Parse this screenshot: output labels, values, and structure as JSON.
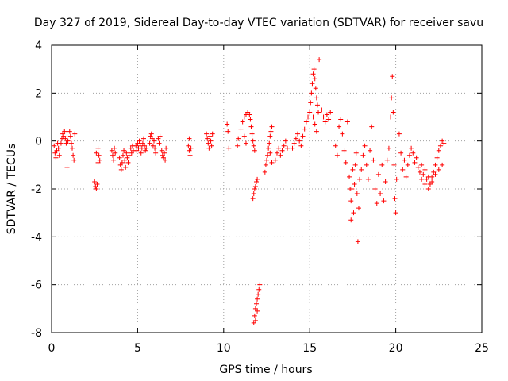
{
  "chart_data": {
    "type": "scatter",
    "title": "Day 327 of 2019, Sidereal Day-to-day VTEC variation (SDTVAR) for receiver savu",
    "xlabel": "GPS time / hours",
    "ylabel": "SDTVAR / TECUs",
    "xlim": [
      0,
      25
    ],
    "ylim": [
      -8,
      4
    ],
    "x_ticks": [
      0,
      5,
      10,
      15,
      20,
      25
    ],
    "y_ticks": [
      -8,
      -6,
      -4,
      -2,
      0,
      2,
      4
    ],
    "x_tick_labels": [
      "0",
      "5",
      "10",
      "15",
      "20",
      "25"
    ],
    "y_tick_labels": [
      "-8",
      "-6",
      "-4",
      "-2",
      "0",
      "2",
      "4"
    ],
    "grid": true,
    "marker": "+",
    "series": [
      {
        "name": "SDTVAR",
        "color": "#ff0000",
        "points": [
          [
            0.15,
            -0.2
          ],
          [
            0.2,
            -0.5
          ],
          [
            0.25,
            -0.7
          ],
          [
            0.3,
            -0.4
          ],
          [
            0.35,
            -0.1
          ],
          [
            0.4,
            -0.3
          ],
          [
            0.45,
            -0.6
          ],
          [
            0.55,
            -0.1
          ],
          [
            0.6,
            0.1
          ],
          [
            0.65,
            0.3
          ],
          [
            0.7,
            0.2
          ],
          [
            0.75,
            0.4
          ],
          [
            0.8,
            0.1
          ],
          [
            0.85,
            -0.1
          ],
          [
            0.9,
            -1.1
          ],
          [
            0.95,
            0.0
          ],
          [
            1.05,
            0.4
          ],
          [
            1.1,
            0.2
          ],
          [
            1.15,
            -0.1
          ],
          [
            1.2,
            -0.3
          ],
          [
            1.25,
            -0.6
          ],
          [
            1.3,
            -0.8
          ],
          [
            1.35,
            0.3
          ],
          [
            2.5,
            -1.7
          ],
          [
            2.55,
            -1.9
          ],
          [
            2.6,
            -2.0
          ],
          [
            2.65,
            -1.8
          ],
          [
            2.7,
            -0.3
          ],
          [
            2.75,
            -0.6
          ],
          [
            2.8,
            -0.8
          ],
          [
            2.7,
            -0.9
          ],
          [
            2.6,
            -0.5
          ],
          [
            3.5,
            -0.4
          ],
          [
            3.55,
            -0.6
          ],
          [
            3.6,
            -0.8
          ],
          [
            3.65,
            -0.3
          ],
          [
            3.7,
            -0.5
          ],
          [
            3.95,
            -0.7
          ],
          [
            4.0,
            -1.0
          ],
          [
            4.05,
            -1.2
          ],
          [
            4.1,
            -0.9
          ],
          [
            4.15,
            -0.6
          ],
          [
            4.2,
            -0.4
          ],
          [
            4.25,
            -0.8
          ],
          [
            4.3,
            -1.1
          ],
          [
            4.35,
            -0.5
          ],
          [
            4.4,
            -0.7
          ],
          [
            4.45,
            -0.9
          ],
          [
            4.5,
            -0.6
          ],
          [
            4.6,
            -0.3
          ],
          [
            4.65,
            -0.5
          ],
          [
            4.7,
            -0.2
          ],
          [
            4.75,
            -0.4
          ],
          [
            4.9,
            -0.2
          ],
          [
            4.95,
            -0.4
          ],
          [
            5.0,
            -0.1
          ],
          [
            5.05,
            -0.3
          ],
          [
            5.1,
            0.0
          ],
          [
            5.15,
            -0.2
          ],
          [
            5.2,
            -0.5
          ],
          [
            5.25,
            -0.3
          ],
          [
            5.3,
            -0.1
          ],
          [
            5.35,
            0.1
          ],
          [
            5.4,
            -0.2
          ],
          [
            5.45,
            -0.4
          ],
          [
            5.5,
            -0.3
          ],
          [
            5.7,
            -0.1
          ],
          [
            5.75,
            0.2
          ],
          [
            5.8,
            0.3
          ],
          [
            5.85,
            0.1
          ],
          [
            5.9,
            -0.2
          ],
          [
            5.95,
            0.0
          ],
          [
            6.0,
            -0.3
          ],
          [
            6.05,
            -0.5
          ],
          [
            6.2,
            0.1
          ],
          [
            6.25,
            -0.1
          ],
          [
            6.3,
            0.2
          ],
          [
            6.4,
            -0.4
          ],
          [
            6.45,
            -0.6
          ],
          [
            6.5,
            -0.7
          ],
          [
            6.55,
            -0.5
          ],
          [
            6.6,
            -0.8
          ],
          [
            6.65,
            -0.3
          ],
          [
            7.95,
            -0.2
          ],
          [
            8.0,
            -0.4
          ],
          [
            8.05,
            -0.6
          ],
          [
            8.0,
            0.1
          ],
          [
            8.1,
            -0.3
          ],
          [
            9.0,
            0.3
          ],
          [
            9.05,
            0.1
          ],
          [
            9.1,
            -0.1
          ],
          [
            9.15,
            -0.3
          ],
          [
            9.2,
            0.2
          ],
          [
            9.25,
            0.0
          ],
          [
            9.3,
            -0.2
          ],
          [
            9.35,
            0.3
          ],
          [
            10.2,
            0.7
          ],
          [
            10.25,
            0.4
          ],
          [
            10.3,
            -0.3
          ],
          [
            10.8,
            -0.2
          ],
          [
            10.85,
            0.1
          ],
          [
            11.0,
            0.5
          ],
          [
            11.1,
            0.8
          ],
          [
            11.2,
            1.0
          ],
          [
            11.3,
            1.1
          ],
          [
            11.4,
            1.2
          ],
          [
            11.5,
            1.1
          ],
          [
            11.55,
            0.9
          ],
          [
            11.6,
            0.6
          ],
          [
            11.65,
            0.3
          ],
          [
            11.7,
            0.0
          ],
          [
            11.75,
            -0.2
          ],
          [
            11.8,
            -0.4
          ],
          [
            11.2,
            0.2
          ],
          [
            11.3,
            -0.1
          ],
          [
            11.7,
            -2.4
          ],
          [
            11.75,
            -2.2
          ],
          [
            11.8,
            -2.0
          ],
          [
            11.85,
            -1.9
          ],
          [
            11.9,
            -1.7
          ],
          [
            11.95,
            -1.6
          ],
          [
            11.75,
            -7.6
          ],
          [
            11.8,
            -7.3
          ],
          [
            11.85,
            -7.0
          ],
          [
            11.9,
            -6.8
          ],
          [
            11.95,
            -6.6
          ],
          [
            12.0,
            -6.4
          ],
          [
            12.05,
            -6.2
          ],
          [
            12.1,
            -6.0
          ],
          [
            11.85,
            -7.5
          ],
          [
            11.95,
            -7.1
          ],
          [
            12.4,
            -1.3
          ],
          [
            12.45,
            -1.0
          ],
          [
            12.5,
            -0.8
          ],
          [
            12.55,
            -0.6
          ],
          [
            12.6,
            -0.3
          ],
          [
            12.65,
            -0.1
          ],
          [
            12.7,
            0.2
          ],
          [
            12.75,
            0.4
          ],
          [
            12.8,
            0.6
          ],
          [
            12.7,
            -0.5
          ],
          [
            12.8,
            -0.9
          ],
          [
            13.0,
            -0.8
          ],
          [
            13.1,
            -0.5
          ],
          [
            13.2,
            -0.3
          ],
          [
            13.3,
            -0.6
          ],
          [
            13.4,
            -0.4
          ],
          [
            13.5,
            -0.2
          ],
          [
            13.6,
            0.0
          ],
          [
            13.7,
            -0.3
          ],
          [
            14.0,
            -0.3
          ],
          [
            14.1,
            -0.1
          ],
          [
            14.2,
            0.1
          ],
          [
            14.3,
            0.3
          ],
          [
            14.4,
            0.0
          ],
          [
            14.5,
            -0.2
          ],
          [
            14.6,
            0.2
          ],
          [
            14.7,
            0.5
          ],
          [
            14.8,
            0.8
          ],
          [
            14.9,
            1.0
          ],
          [
            15.0,
            1.2
          ],
          [
            15.05,
            1.6
          ],
          [
            15.1,
            2.0
          ],
          [
            15.15,
            2.4
          ],
          [
            15.2,
            2.8
          ],
          [
            15.25,
            3.0
          ],
          [
            15.3,
            2.6
          ],
          [
            15.35,
            2.2
          ],
          [
            15.4,
            1.8
          ],
          [
            15.45,
            1.5
          ],
          [
            15.5,
            1.2
          ],
          [
            15.55,
            3.4
          ],
          [
            15.2,
            1.0
          ],
          [
            15.3,
            0.7
          ],
          [
            15.4,
            0.4
          ],
          [
            15.7,
            1.3
          ],
          [
            15.8,
            1.0
          ],
          [
            15.9,
            0.8
          ],
          [
            16.0,
            1.1
          ],
          [
            16.1,
            0.9
          ],
          [
            16.2,
            1.2
          ],
          [
            16.5,
            -0.2
          ],
          [
            16.6,
            -0.6
          ],
          [
            16.7,
            0.6
          ],
          [
            16.8,
            0.9
          ],
          [
            16.9,
            0.3
          ],
          [
            17.0,
            -0.4
          ],
          [
            17.1,
            -0.9
          ],
          [
            17.2,
            0.8
          ],
          [
            17.3,
            -1.5
          ],
          [
            17.35,
            -2.0
          ],
          [
            17.4,
            -2.5
          ],
          [
            17.45,
            -2.0
          ],
          [
            17.5,
            -1.2
          ],
          [
            17.55,
            -3.0
          ],
          [
            17.6,
            -1.8
          ],
          [
            17.65,
            -1.0
          ],
          [
            17.7,
            -0.5
          ],
          [
            17.75,
            -2.2
          ],
          [
            17.8,
            -4.2
          ],
          [
            17.85,
            -2.8
          ],
          [
            17.9,
            -1.6
          ],
          [
            17.4,
            -3.3
          ],
          [
            18.0,
            -1.2
          ],
          [
            18.1,
            -0.6
          ],
          [
            18.2,
            -0.2
          ],
          [
            18.3,
            -1.0
          ],
          [
            18.4,
            -1.6
          ],
          [
            18.5,
            -0.4
          ],
          [
            18.6,
            0.6
          ],
          [
            18.7,
            -0.8
          ],
          [
            18.8,
            -2.0
          ],
          [
            18.9,
            -2.6
          ],
          [
            19.0,
            -1.4
          ],
          [
            19.1,
            -2.2
          ],
          [
            19.2,
            -1.0
          ],
          [
            19.3,
            -2.5
          ],
          [
            19.4,
            -1.7
          ],
          [
            19.5,
            -0.8
          ],
          [
            19.6,
            -0.3
          ],
          [
            19.7,
            1.0
          ],
          [
            19.75,
            1.8
          ],
          [
            19.8,
            2.7
          ],
          [
            19.85,
            1.2
          ],
          [
            19.9,
            -1.0
          ],
          [
            19.95,
            -2.4
          ],
          [
            20.0,
            -3.0
          ],
          [
            20.05,
            -1.6
          ],
          [
            20.2,
            0.3
          ],
          [
            20.3,
            -0.5
          ],
          [
            20.4,
            -1.2
          ],
          [
            20.5,
            -0.8
          ],
          [
            20.6,
            -1.5
          ],
          [
            20.7,
            -1.0
          ],
          [
            20.8,
            -0.6
          ],
          [
            20.9,
            -0.3
          ],
          [
            21.0,
            -0.5
          ],
          [
            21.1,
            -0.9
          ],
          [
            21.2,
            -0.7
          ],
          [
            21.3,
            -1.1
          ],
          [
            21.4,
            -1.3
          ],
          [
            21.5,
            -1.0
          ],
          [
            21.6,
            -1.4
          ],
          [
            21.7,
            -1.2
          ],
          [
            21.8,
            -1.6
          ],
          [
            21.9,
            -1.5
          ],
          [
            22.0,
            -1.8
          ],
          [
            22.1,
            -1.7
          ],
          [
            22.2,
            -1.3
          ],
          [
            22.3,
            -1.0
          ],
          [
            22.4,
            -0.7
          ],
          [
            22.5,
            -0.4
          ],
          [
            22.6,
            -0.2
          ],
          [
            22.7,
            0.0
          ],
          [
            22.8,
            -0.1
          ],
          [
            21.5,
            -1.6
          ],
          [
            21.7,
            -1.8
          ],
          [
            21.9,
            -2.0
          ],
          [
            22.1,
            -1.5
          ],
          [
            22.3,
            -1.4
          ],
          [
            22.5,
            -1.2
          ],
          [
            22.7,
            -1.0
          ]
        ]
      }
    ]
  }
}
